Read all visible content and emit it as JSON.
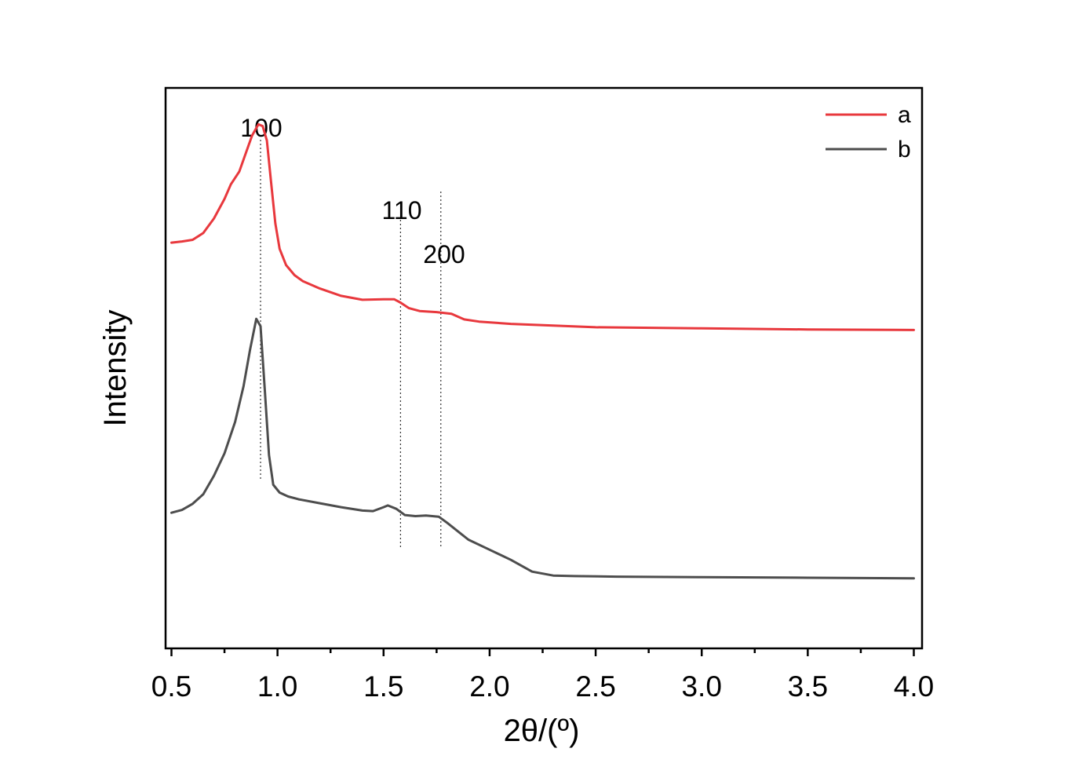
{
  "chart_data": {
    "type": "line",
    "xlabel": "2θ/(º)",
    "ylabel": "Intensity",
    "xlim": [
      0.5,
      4.0
    ],
    "ylim": [
      0,
      100
    ],
    "x_ticks": [
      "0.5",
      "1.0",
      "1.5",
      "2.0",
      "2.5",
      "3.0",
      "3.5",
      "4.0"
    ],
    "y_ticks_shown": false,
    "grid": false,
    "legend": "top-right",
    "peaks": [
      {
        "label": "100",
        "x": 0.92
      },
      {
        "label": "110",
        "x": 1.58
      },
      {
        "label": "200",
        "x": 1.77
      }
    ],
    "series": [
      {
        "name": "a",
        "color": "#e8383d",
        "points": [
          [
            0.5,
            72.4
          ],
          [
            0.55,
            72.6
          ],
          [
            0.6,
            72.9
          ],
          [
            0.65,
            74.1
          ],
          [
            0.7,
            76.7
          ],
          [
            0.75,
            80.2
          ],
          [
            0.78,
            82.8
          ],
          [
            0.82,
            85.1
          ],
          [
            0.85,
            88.3
          ],
          [
            0.88,
            91.5
          ],
          [
            0.91,
            93.5
          ],
          [
            0.93,
            93.2
          ],
          [
            0.95,
            90.6
          ],
          [
            0.97,
            83.1
          ],
          [
            0.99,
            75.8
          ],
          [
            1.01,
            71.3
          ],
          [
            1.04,
            68.4
          ],
          [
            1.08,
            66.6
          ],
          [
            1.12,
            65.5
          ],
          [
            1.2,
            64.2
          ],
          [
            1.3,
            62.9
          ],
          [
            1.4,
            62.2
          ],
          [
            1.5,
            62.3
          ],
          [
            1.55,
            62.3
          ],
          [
            1.58,
            61.7
          ],
          [
            1.62,
            60.7
          ],
          [
            1.67,
            60.2
          ],
          [
            1.75,
            60.0
          ],
          [
            1.82,
            59.7
          ],
          [
            1.88,
            58.7
          ],
          [
            1.95,
            58.3
          ],
          [
            2.1,
            57.9
          ],
          [
            2.3,
            57.6
          ],
          [
            2.5,
            57.3
          ],
          [
            3.0,
            57.1
          ],
          [
            3.5,
            56.9
          ],
          [
            4.0,
            56.8
          ]
        ]
      },
      {
        "name": "b",
        "color": "#4d4d4d",
        "points": [
          [
            0.5,
            24.2
          ],
          [
            0.55,
            24.7
          ],
          [
            0.6,
            25.8
          ],
          [
            0.65,
            27.5
          ],
          [
            0.7,
            30.8
          ],
          [
            0.75,
            34.8
          ],
          [
            0.8,
            40.4
          ],
          [
            0.84,
            46.8
          ],
          [
            0.87,
            53.2
          ],
          [
            0.9,
            58.8
          ],
          [
            0.92,
            57.5
          ],
          [
            0.94,
            46.2
          ],
          [
            0.96,
            34.5
          ],
          [
            0.98,
            29.2
          ],
          [
            1.01,
            27.8
          ],
          [
            1.05,
            27.1
          ],
          [
            1.1,
            26.6
          ],
          [
            1.2,
            25.9
          ],
          [
            1.3,
            25.2
          ],
          [
            1.4,
            24.6
          ],
          [
            1.45,
            24.5
          ],
          [
            1.5,
            25.2
          ],
          [
            1.52,
            25.5
          ],
          [
            1.56,
            24.9
          ],
          [
            1.6,
            23.8
          ],
          [
            1.65,
            23.6
          ],
          [
            1.7,
            23.7
          ],
          [
            1.76,
            23.5
          ],
          [
            1.8,
            22.4
          ],
          [
            1.86,
            20.6
          ],
          [
            1.9,
            19.4
          ],
          [
            2.0,
            17.6
          ],
          [
            2.1,
            15.8
          ],
          [
            2.2,
            13.7
          ],
          [
            2.3,
            13.0
          ],
          [
            2.4,
            12.9
          ],
          [
            2.6,
            12.8
          ],
          [
            3.0,
            12.7
          ],
          [
            3.5,
            12.6
          ],
          [
            4.0,
            12.5
          ]
        ]
      }
    ]
  }
}
